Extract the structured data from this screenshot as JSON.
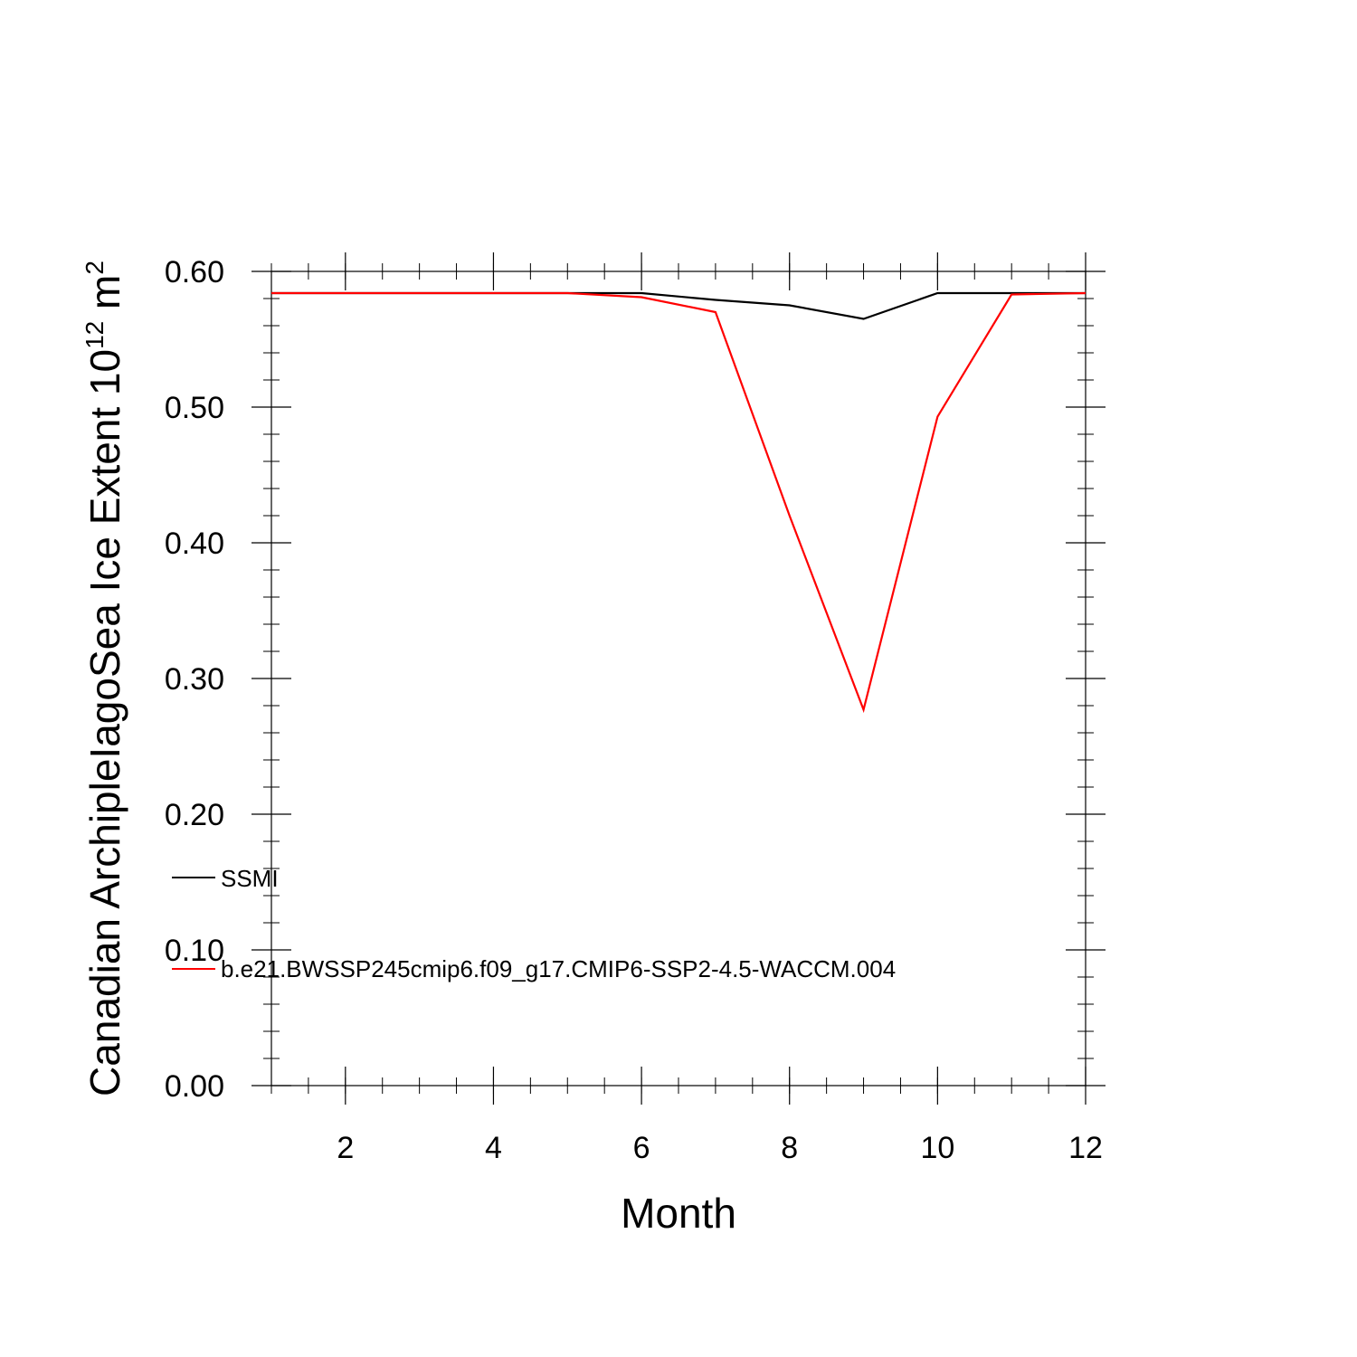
{
  "chart_data": {
    "type": "line",
    "title": "",
    "xlabel": "Month",
    "ylabel": {
      "text": "Canadian ArchipleIagoSea Ice Extent 10",
      "exponent": "12",
      "unit": " m",
      "unit_exponent": "2"
    },
    "xlim": [
      1,
      12
    ],
    "ylim": [
      0,
      0.6
    ],
    "x_ticks": [
      2,
      4,
      6,
      8,
      10,
      12
    ],
    "y_ticks": [
      0.0,
      0.1,
      0.2,
      0.3,
      0.4,
      0.5,
      0.6
    ],
    "y_tick_labels": [
      "0.00",
      "0.10",
      "0.20",
      "0.30",
      "0.40",
      "0.50",
      "0.60"
    ],
    "grid": false,
    "legend_position": "left, inside",
    "x": [
      1,
      2,
      3,
      4,
      5,
      6,
      7,
      8,
      9,
      10,
      11,
      12
    ],
    "series": [
      {
        "name": "SSMI",
        "color": "#000000",
        "values": [
          0.584,
          0.584,
          0.584,
          0.584,
          0.584,
          0.584,
          0.579,
          0.575,
          0.565,
          0.584,
          0.584,
          0.584
        ]
      },
      {
        "name": "b.e21.BWSSP245cmip6.f09_g17.CMIP6-SSP2-4.5-WACCM.004",
        "color": "#ff0000",
        "values": [
          0.584,
          0.584,
          0.584,
          0.584,
          0.584,
          0.581,
          0.57,
          0.42,
          0.277,
          0.493,
          0.583,
          0.584
        ]
      }
    ]
  }
}
